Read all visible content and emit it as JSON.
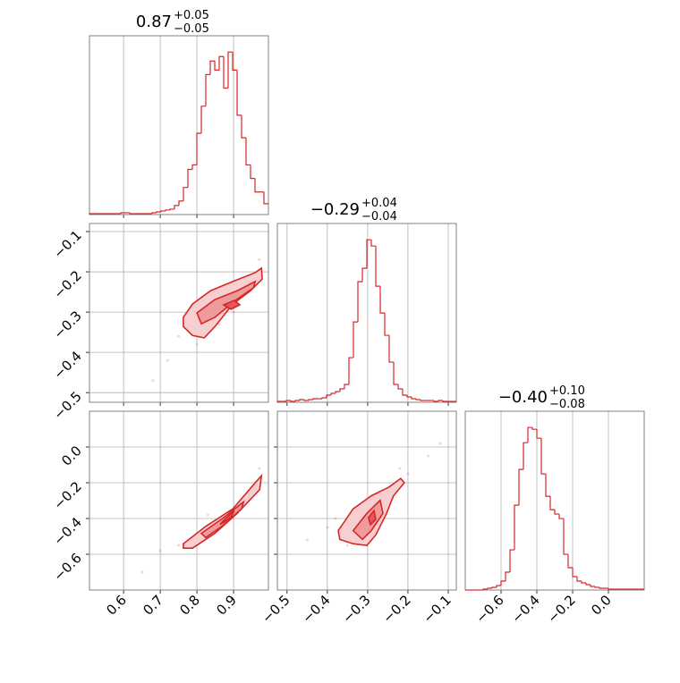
{
  "chart_data": {
    "type": "corner",
    "color": "#d62728",
    "grid": true,
    "params": [
      {
        "title": "0.87",
        "title_plus": "+0.05",
        "title_minus": "−0.05",
        "lim": [
          0.507,
          0.995
        ],
        "ticks": [
          0.6,
          0.7,
          0.8,
          0.9
        ],
        "bins": [
          0.507,
          0.5192,
          0.5314,
          0.5436,
          0.5558,
          0.568,
          0.5802,
          0.5924,
          0.6046,
          0.6168,
          0.629,
          0.6412,
          0.6534,
          0.6656,
          0.6778,
          0.69,
          0.7022,
          0.7144,
          0.7266,
          0.7388,
          0.751,
          0.7632,
          0.7754,
          0.7876,
          0.7998,
          0.812,
          0.8242,
          0.8364,
          0.8486,
          0.8608,
          0.873,
          0.8852,
          0.8974,
          0.9096,
          0.9218,
          0.934,
          0.9462,
          0.9584,
          0.9706,
          0.9828,
          0.995
        ],
        "counts": [
          1,
          1,
          1,
          1,
          1,
          1,
          1,
          2,
          2,
          1,
          1,
          1,
          1,
          1,
          2,
          3,
          4,
          5,
          6,
          10,
          15,
          30,
          50,
          55,
          90,
          120,
          155,
          170,
          160,
          175,
          140,
          180,
          160,
          110,
          85,
          55,
          40,
          25,
          25,
          12
        ]
      },
      {
        "title": "−0.29",
        "title_plus": "+0.04",
        "title_minus": "−0.04",
        "lim": [
          -0.524,
          -0.08
        ],
        "ticks": [
          {
            "value": -0.5,
            "label": "−0.5"
          },
          {
            "value": -0.4,
            "label": "−0.4"
          },
          {
            "value": -0.3,
            "label": "−0.3"
          },
          {
            "value": -0.2,
            "label": "−0.2"
          },
          {
            "value": -0.1,
            "label": "−0.1"
          }
        ],
        "bins": [
          -0.524,
          -0.5129,
          -0.5018,
          -0.4907,
          -0.4796,
          -0.4685,
          -0.4574,
          -0.4463,
          -0.4352,
          -0.4241,
          -0.413,
          -0.4019,
          -0.3908,
          -0.3797,
          -0.3686,
          -0.3575,
          -0.3464,
          -0.3353,
          -0.3242,
          -0.3131,
          -0.302,
          -0.2909,
          -0.2798,
          -0.2687,
          -0.2576,
          -0.2465,
          -0.2354,
          -0.2243,
          -0.2132,
          -0.2021,
          -0.191,
          -0.1799,
          -0.1688,
          -0.1577,
          -0.1466,
          -0.1355,
          -0.1244,
          -0.1133,
          -0.1022,
          -0.0911,
          -0.08
        ],
        "counts": [
          1,
          1,
          2,
          1,
          2,
          3,
          2,
          3,
          4,
          4,
          5,
          8,
          10,
          12,
          15,
          20,
          50,
          90,
          135,
          150,
          182,
          175,
          130,
          100,
          75,
          45,
          20,
          15,
          8,
          6,
          4,
          3,
          2,
          2,
          2,
          1,
          2,
          1,
          1,
          1
        ]
      },
      {
        "title": "−0.40",
        "title_plus": "+0.10",
        "title_minus": "−0.08",
        "lim": [
          -0.8,
          0.2
        ],
        "ticks": [
          {
            "value": -0.6,
            "label": "−0.6"
          },
          {
            "value": -0.4,
            "label": "−0.4"
          },
          {
            "value": -0.2,
            "label": "−0.2"
          },
          {
            "value": 0,
            "label": "0.0"
          }
        ],
        "bins": [
          -0.8,
          -0.775,
          -0.75,
          -0.725,
          -0.7,
          -0.675,
          -0.65,
          -0.625,
          -0.6,
          -0.575,
          -0.55,
          -0.525,
          -0.5,
          -0.475,
          -0.45,
          -0.425,
          -0.4,
          -0.375,
          -0.35,
          -0.325,
          -0.3,
          -0.275,
          -0.25,
          -0.225,
          -0.2,
          -0.175,
          -0.15,
          -0.125,
          -0.1,
          -0.075,
          -0.05,
          -0.025,
          0,
          0.025,
          0.05,
          0.075,
          0.1,
          0.125,
          0.15,
          0.175,
          0.2
        ],
        "counts": [
          0,
          0,
          0,
          0,
          1,
          2,
          3,
          5,
          10,
          20,
          45,
          95,
          135,
          165,
          182,
          180,
          170,
          130,
          105,
          90,
          85,
          80,
          40,
          25,
          15,
          10,
          8,
          6,
          4,
          3,
          2,
          2,
          1,
          1,
          1,
          1,
          1,
          1,
          1,
          1
        ]
      }
    ],
    "pairs": [
      {
        "x": 0,
        "y": 1,
        "points": {
          "x": [
            0.72,
            0.75,
            0.8,
            0.86,
            0.93,
            0.97,
            0.68,
            0.9,
            0.83,
            0.95
          ],
          "y": [
            -0.42,
            -0.36,
            -0.38,
            -0.33,
            -0.25,
            -0.17,
            -0.47,
            -0.3,
            -0.26,
            -0.22
          ]
        },
        "contours": [
          {
            "x": [
              0.763,
              0.788,
              0.837,
              0.898,
              0.959,
              0.976,
              0.978,
              0.946,
              0.898,
              0.849,
              0.82,
              0.788,
              0.763
            ],
            "y": [
              -0.313,
              -0.28,
              -0.247,
              -0.224,
              -0.202,
              -0.191,
              -0.218,
              -0.247,
              -0.28,
              -0.336,
              -0.364,
              -0.358,
              -0.336
            ]
          },
          {
            "x": [
              0.8,
              0.849,
              0.91,
              0.959,
              0.954,
              0.902,
              0.849,
              0.812
            ],
            "y": [
              -0.302,
              -0.269,
              -0.247,
              -0.224,
              -0.24,
              -0.273,
              -0.313,
              -0.329
            ]
          },
          {
            "x": [
              0.873,
              0.902,
              0.917,
              0.893
            ],
            "y": [
              -0.282,
              -0.271,
              -0.282,
              -0.293
            ]
          }
        ]
      },
      {
        "x": 0,
        "y": 2,
        "points": {
          "x": [
            0.7,
            0.75,
            0.8,
            0.86,
            0.93,
            0.97,
            0.65,
            0.9,
            0.83,
            0.96
          ],
          "y": [
            -0.58,
            -0.55,
            -0.5,
            -0.42,
            -0.3,
            -0.12,
            -0.7,
            -0.36,
            -0.38,
            -0.2
          ]
        },
        "contours": [
          {
            "x": [
              0.763,
              0.824,
              0.898,
              0.959,
              0.976,
              0.971,
              0.91,
              0.849,
              0.788,
              0.763
            ],
            "y": [
              -0.541,
              -0.444,
              -0.346,
              -0.2,
              -0.161,
              -0.239,
              -0.371,
              -0.483,
              -0.566,
              -0.566
            ]
          },
          {
            "x": [
              0.812,
              0.873,
              0.927,
              0.922,
              0.868,
              0.824
            ],
            "y": [
              -0.483,
              -0.395,
              -0.307,
              -0.346,
              -0.444,
              -0.507
            ]
          },
          {
            "x": [
              0.873,
              0.902,
              0.893,
              0.863
            ],
            "y": [
              -0.41,
              -0.356,
              -0.395,
              -0.434
            ]
          }
        ]
      },
      {
        "x": 1,
        "y": 2,
        "points": {
          "x": [
            -0.45,
            -0.4,
            -0.35,
            -0.3,
            -0.25,
            -0.2,
            -0.15,
            -0.12,
            -0.38,
            -0.22
          ],
          "y": [
            -0.52,
            -0.45,
            -0.55,
            -0.35,
            -0.3,
            -0.15,
            -0.05,
            0.02,
            -0.4,
            -0.12
          ]
        },
        "contours": [
          {
            "x": [
              -0.373,
              -0.336,
              -0.291,
              -0.247,
              -0.218,
              -0.209,
              -0.236,
              -0.253,
              -0.28,
              -0.302,
              -0.336,
              -0.369
            ],
            "y": [
              -0.468,
              -0.346,
              -0.273,
              -0.224,
              -0.176,
              -0.2,
              -0.273,
              -0.371,
              -0.493,
              -0.551,
              -0.541,
              -0.517
            ]
          },
          {
            "x": [
              -0.336,
              -0.302,
              -0.269,
              -0.262,
              -0.291,
              -0.313
            ],
            "y": [
              -0.468,
              -0.371,
              -0.298,
              -0.371,
              -0.468,
              -0.517
            ]
          },
          {
            "x": [
              -0.298,
              -0.284,
              -0.28,
              -0.293
            ],
            "y": [
              -0.395,
              -0.356,
              -0.405,
              -0.434
            ]
          }
        ]
      }
    ]
  }
}
